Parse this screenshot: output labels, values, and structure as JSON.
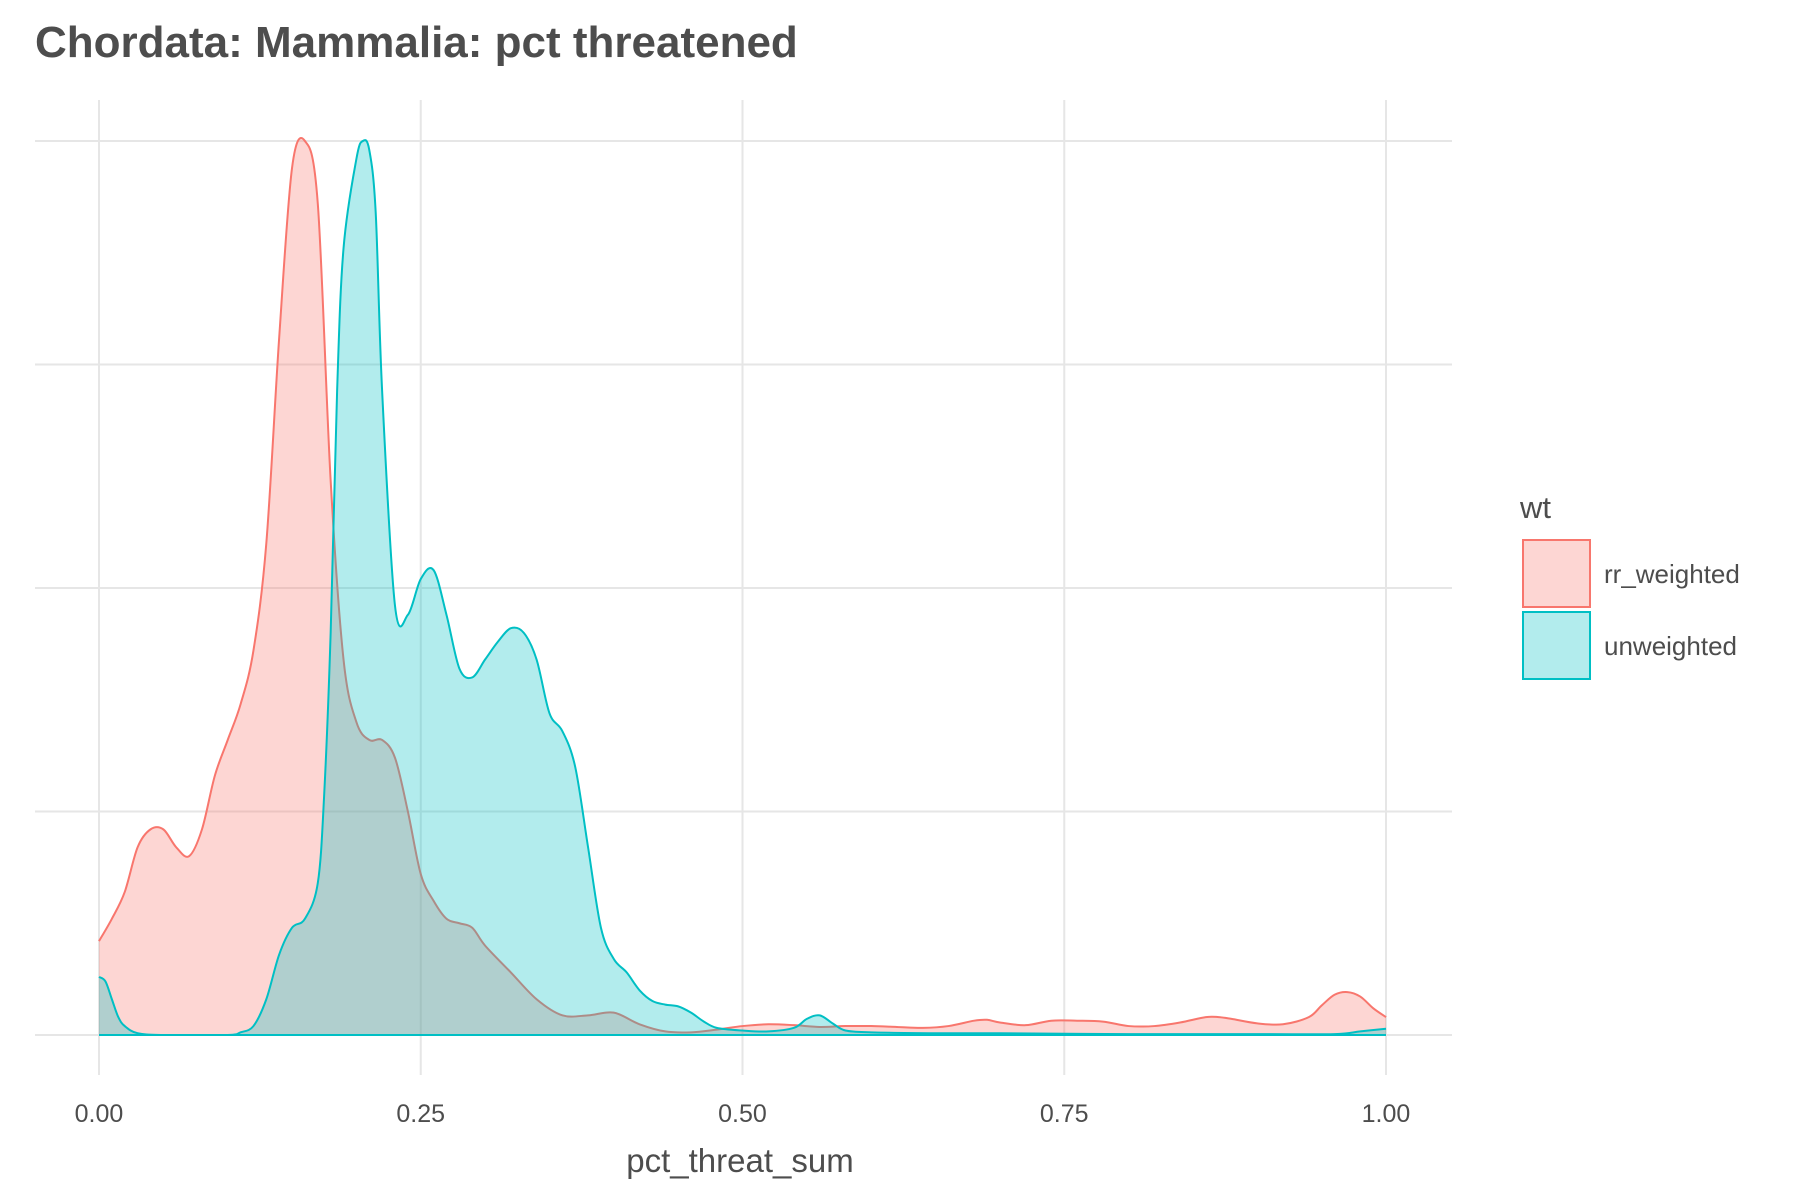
{
  "chart_data": {
    "type": "area",
    "title": "Chordata: Mammalia: pct threatened",
    "xlabel": "pct_threat_sum",
    "ylabel": "",
    "xlim": [
      0,
      1
    ],
    "ylim": [
      0,
      1
    ],
    "x_ticks": [
      0,
      0.25,
      0.5,
      0.75,
      1
    ],
    "x_tick_labels": [
      "0.00",
      "0.25",
      "0.50",
      "0.75",
      "1.00"
    ],
    "y_gridlines": [
      0,
      0.25,
      0.5,
      0.75,
      1
    ],
    "y_tick_labels_shown": false,
    "grid": true,
    "legend": {
      "title": "wt",
      "position": "right",
      "entries": [
        "rr_weighted",
        "unweighted"
      ]
    },
    "series": [
      {
        "name": "rr_weighted",
        "color": "#f8766d",
        "fill": "#f8766d",
        "fill_opacity": 0.3,
        "x": [
          0,
          0.01,
          0.02,
          0.03,
          0.04,
          0.05,
          0.06,
          0.07,
          0.08,
          0.09,
          0.1,
          0.11,
          0.12,
          0.13,
          0.14,
          0.15,
          0.16,
          0.17,
          0.18,
          0.19,
          0.2,
          0.21,
          0.22,
          0.23,
          0.24,
          0.25,
          0.26,
          0.27,
          0.28,
          0.29,
          0.3,
          0.32,
          0.34,
          0.36,
          0.38,
          0.4,
          0.42,
          0.44,
          0.46,
          0.48,
          0.5,
          0.52,
          0.54,
          0.56,
          0.58,
          0.6,
          0.62,
          0.64,
          0.66,
          0.68,
          0.69,
          0.7,
          0.72,
          0.74,
          0.76,
          0.78,
          0.8,
          0.82,
          0.84,
          0.86,
          0.87,
          0.88,
          0.9,
          0.92,
          0.94,
          0.95,
          0.96,
          0.97,
          0.98,
          0.99,
          1.0
        ],
        "values": [
          0.105,
          0.13,
          0.16,
          0.21,
          0.23,
          0.23,
          0.21,
          0.2,
          0.23,
          0.29,
          0.33,
          0.37,
          0.43,
          0.55,
          0.78,
          0.97,
          1.0,
          0.93,
          0.62,
          0.42,
          0.35,
          0.33,
          0.33,
          0.31,
          0.25,
          0.18,
          0.15,
          0.13,
          0.125,
          0.12,
          0.1,
          0.07,
          0.04,
          0.022,
          0.022,
          0.025,
          0.012,
          0.004,
          0.003,
          0.006,
          0.01,
          0.012,
          0.011,
          0.009,
          0.01,
          0.01,
          0.009,
          0.008,
          0.01,
          0.016,
          0.017,
          0.014,
          0.011,
          0.016,
          0.016,
          0.015,
          0.01,
          0.01,
          0.014,
          0.02,
          0.02,
          0.018,
          0.013,
          0.012,
          0.02,
          0.033,
          0.045,
          0.048,
          0.043,
          0.03,
          0.02
        ]
      },
      {
        "name": "unweighted",
        "color": "#00bfc4",
        "fill": "#00bfc4",
        "fill_opacity": 0.3,
        "x": [
          0,
          0.005,
          0.01,
          0.015,
          0.02,
          0.03,
          0.05,
          0.1,
          0.11,
          0.12,
          0.13,
          0.14,
          0.15,
          0.16,
          0.17,
          0.175,
          0.18,
          0.185,
          0.19,
          0.2,
          0.205,
          0.21,
          0.215,
          0.22,
          0.23,
          0.24,
          0.25,
          0.26,
          0.27,
          0.28,
          0.29,
          0.3,
          0.31,
          0.32,
          0.33,
          0.34,
          0.35,
          0.36,
          0.37,
          0.38,
          0.39,
          0.4,
          0.41,
          0.42,
          0.43,
          0.44,
          0.45,
          0.46,
          0.47,
          0.48,
          0.5,
          0.52,
          0.54,
          0.55,
          0.56,
          0.57,
          0.58,
          0.6,
          0.65,
          0.7,
          0.8,
          0.9,
          0.96,
          0.98,
          1.0
        ],
        "values": [
          0.065,
          0.06,
          0.04,
          0.02,
          0.01,
          0.002,
          0.0,
          0.0,
          0.003,
          0.01,
          0.04,
          0.09,
          0.12,
          0.13,
          0.17,
          0.27,
          0.45,
          0.72,
          0.88,
          0.98,
          1.0,
          0.99,
          0.92,
          0.72,
          0.48,
          0.47,
          0.51,
          0.52,
          0.47,
          0.41,
          0.4,
          0.42,
          0.44,
          0.455,
          0.45,
          0.42,
          0.36,
          0.34,
          0.3,
          0.21,
          0.12,
          0.085,
          0.07,
          0.05,
          0.038,
          0.034,
          0.032,
          0.025,
          0.015,
          0.008,
          0.005,
          0.004,
          0.008,
          0.018,
          0.022,
          0.013,
          0.005,
          0.003,
          0.002,
          0.002,
          0.001,
          0.001,
          0.001,
          0.004,
          0.007
        ]
      }
    ]
  }
}
